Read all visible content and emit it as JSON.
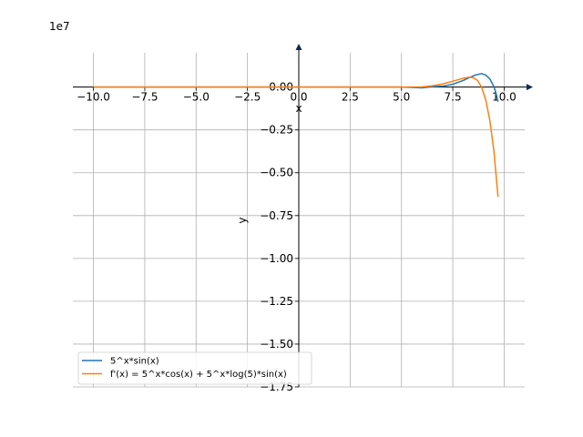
{
  "chart_data": {
    "type": "line",
    "title": "",
    "xlabel": "x",
    "ylabel": "y",
    "y_scale_label": "1e7",
    "xlim": [
      -11,
      11
    ],
    "ylim": [
      -1.75,
      0.2
    ],
    "grid": true,
    "legend_position": "lower-left",
    "x_ticks": [
      -10,
      -7.5,
      -5,
      -2.5,
      0,
      2.5,
      5,
      7.5,
      10
    ],
    "x_tick_labels": [
      "−10.0",
      "−7.5",
      "−5.0",
      "−2.5",
      "0.0",
      "2.5",
      "5.0",
      "7.5",
      "10.0"
    ],
    "y_ticks": [
      0,
      -0.25,
      -0.5,
      -0.75,
      -1.0,
      -1.25,
      -1.5,
      -1.75
    ],
    "y_tick_labels": [
      "0.00",
      "−0.25",
      "−0.50",
      "−0.75",
      "−1.00",
      "−1.25",
      "−1.50",
      "−1.75"
    ],
    "series": [
      {
        "name": "5^x*sin(x)",
        "color": "#1f77b4",
        "x": [
          -10,
          -5,
          0,
          5,
          6,
          6.5,
          7,
          7.5,
          8,
          8.3,
          8.6,
          8.9,
          9.1,
          9.3,
          9.5,
          9.6,
          9.7
        ],
        "y": [
          0,
          0,
          0,
          0,
          -0.0044,
          0.0021,
          0.0051,
          0.0166,
          0.0385,
          0.0551,
          0.0702,
          0.0787,
          0.0701,
          0.0484,
          0.0024,
          -0.035,
          -0.0849
        ]
      },
      {
        "name": "f'(x) = 5^x*cos(x) + 5^x*log(5)*sin(x)",
        "color": "#ff7f0e",
        "x": [
          -10,
          -5,
          0,
          5,
          6,
          6.5,
          7,
          7.5,
          8,
          8.3,
          8.5,
          8.7,
          8.9,
          9.1,
          9.3,
          9.5,
          9.7
        ],
        "y": [
          0,
          0,
          0,
          0,
          0.0009,
          0.0075,
          0.0179,
          0.0342,
          0.051,
          0.058,
          0.0548,
          0.0394,
          0.0006,
          -0.0728,
          -0.1924,
          -0.3711,
          -0.64
        ]
      }
    ]
  }
}
